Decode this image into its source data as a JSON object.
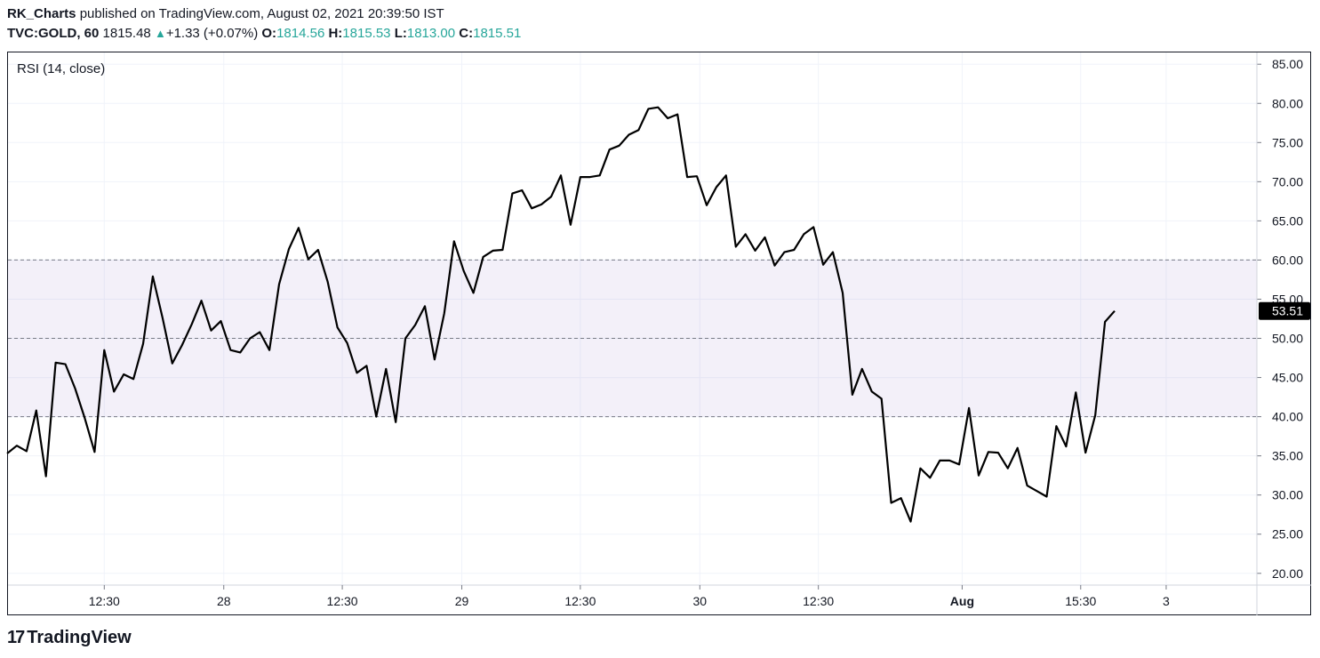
{
  "header": {
    "author": "RK_Charts",
    "published_text": " published on TradingView.com, August 02, 2021 20:39:50 IST",
    "symbol": "TVC:GOLD, 60",
    "last": "1815.48",
    "change": "+1.33 (+0.07%)",
    "open_label": "O:",
    "open": "1814.56",
    "high_label": "H:",
    "high": "1815.53",
    "low_label": "L:",
    "low": "1813.00",
    "close_label": "C:",
    "close": "1815.51"
  },
  "footer": {
    "logo_text": "TradingView",
    "logo_icon": "tradingview-logo-icon"
  },
  "colors": {
    "line": "#000000",
    "band": "#7e57c2",
    "up": "#26a69a"
  },
  "chart_data": {
    "type": "line",
    "title": "RSI (14, close)",
    "y_ticks": [
      "85.00",
      "80.00",
      "75.00",
      "70.00",
      "65.00",
      "60.00",
      "55.00",
      "50.00",
      "45.00",
      "40.00",
      "35.00",
      "30.00",
      "25.00",
      "20.00"
    ],
    "ylim": [
      18.5,
      86.5
    ],
    "x_ticks": [
      {
        "label": "12:30",
        "index": 10
      },
      {
        "label": "28",
        "index": 22.3
      },
      {
        "label": "12:30",
        "index": 34.5
      },
      {
        "label": "29",
        "index": 46.8
      },
      {
        "label": "12:30",
        "index": 59
      },
      {
        "label": "30",
        "index": 71.3
      },
      {
        "label": "12:30",
        "index": 83.5
      },
      {
        "label": "Aug",
        "index": 98.3
      },
      {
        "label": "15:30",
        "index": 110.5
      },
      {
        "label": "3",
        "index": 119.3
      }
    ],
    "bands": {
      "upper": 60,
      "middle": 50,
      "lower": 40
    },
    "last_value_label": "53.51",
    "series": [
      {
        "values": [
          35.3,
          36.3,
          35.6,
          40.8,
          32.4,
          46.9,
          46.7,
          43.6,
          39.8,
          35.5,
          48.5,
          43.2,
          45.4,
          44.8,
          49.3,
          57.9,
          52.6,
          46.8,
          49.1,
          51.8,
          54.8,
          51.0,
          52.2,
          48.5,
          48.2,
          50.0,
          50.8,
          48.5,
          56.9,
          61.4,
          64.1,
          60.1,
          61.3,
          57.2,
          51.4,
          49.4,
          45.6,
          46.5,
          40.0,
          46.1,
          39.3,
          50.0,
          51.7,
          54.1,
          47.3,
          53.2,
          62.4,
          58.6,
          55.8,
          60.4,
          61.2,
          61.3,
          68.5,
          68.9,
          66.6,
          67.1,
          68.1,
          70.8,
          64.5,
          70.6,
          70.6,
          70.8,
          74.1,
          74.6,
          76.0,
          76.6,
          79.3,
          79.5,
          78.1,
          78.6,
          70.6,
          70.7,
          67.0,
          69.3,
          70.8,
          61.7,
          63.3,
          61.2,
          62.9,
          59.3,
          61.0,
          61.3,
          63.3,
          64.2,
          59.4,
          61.0,
          55.8,
          42.8,
          46.1,
          43.2,
          42.3,
          29.0,
          29.6,
          26.6,
          33.4,
          32.2,
          34.4,
          34.4,
          33.9,
          41.1,
          32.5,
          35.5,
          35.4,
          33.4,
          36.0,
          31.2,
          30.5,
          29.8,
          38.8,
          36.2,
          43.1,
          35.4,
          40.2,
          52.1,
          53.5
        ]
      }
    ]
  }
}
